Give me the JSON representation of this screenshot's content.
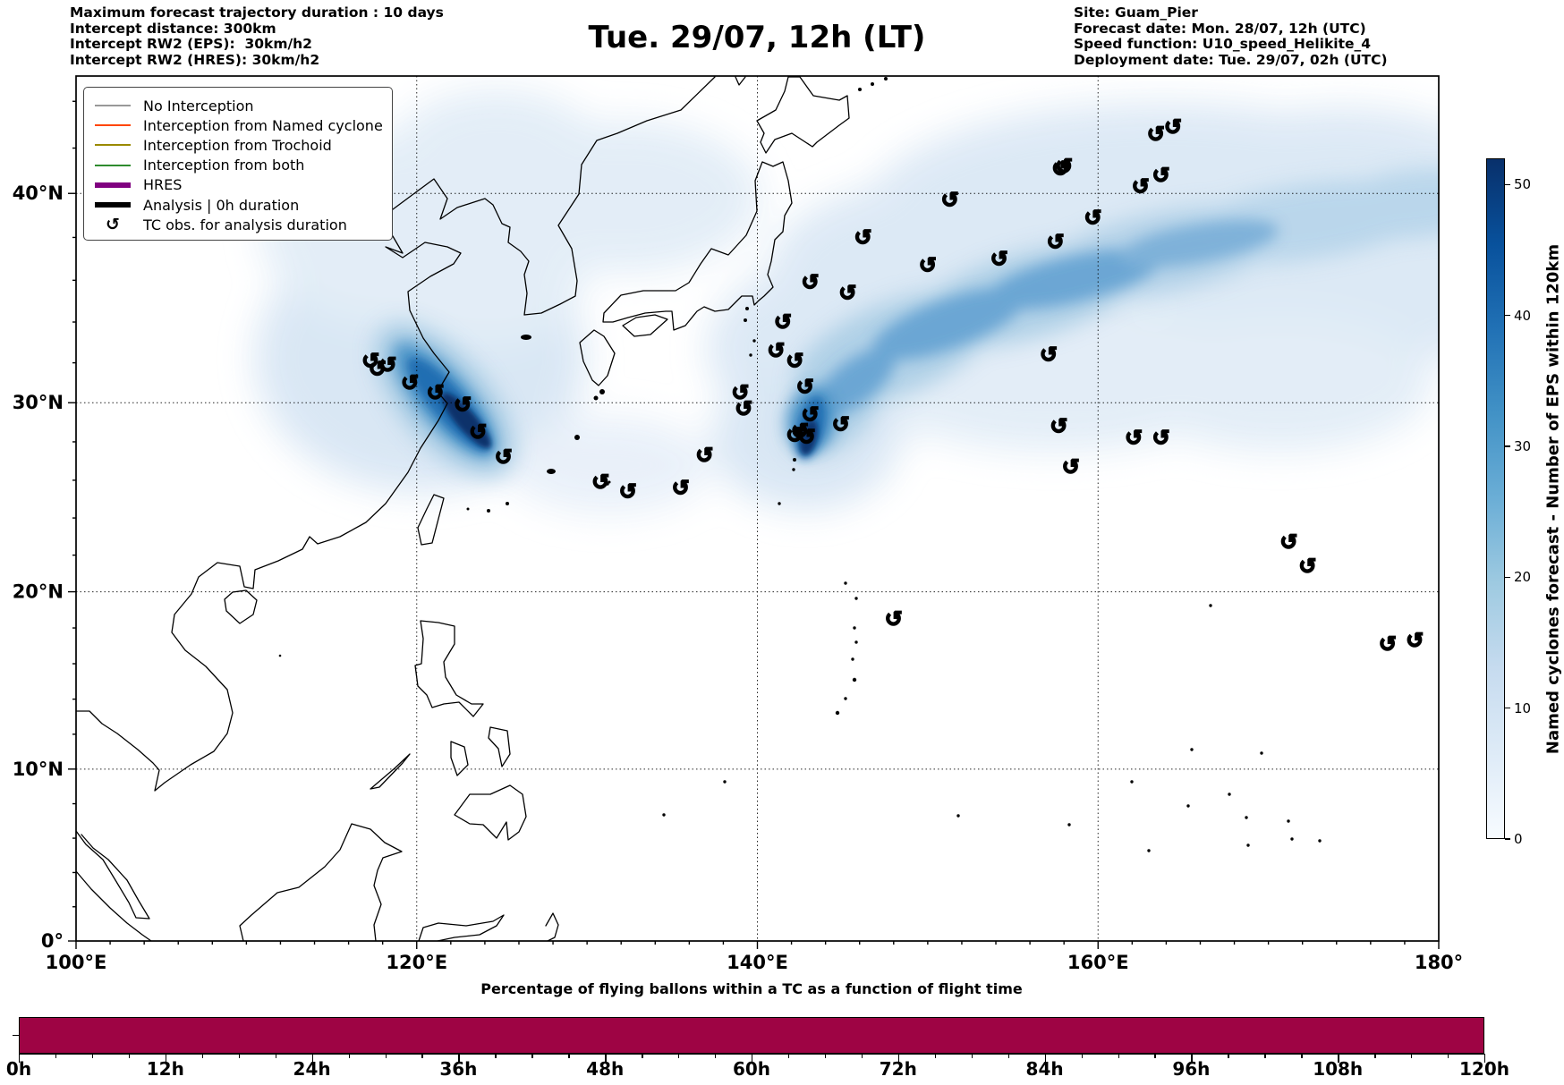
{
  "header": {
    "left_lines": [
      "Maximum forecast trajectory duration : 10 days",
      "Intercept distance: 300km",
      "Intercept RW2 (EPS):  30km/h2",
      "Intercept RW2 (HRES): 30km/h2"
    ],
    "title": "Tue. 29/07, 12h (LT)",
    "right_lines": [
      "Site: Guam_Pier",
      "Forecast date: Mon. 28/07, 12h (UTC)",
      "Speed function: U10_speed_Helikite_4",
      "Deployment date: Tue. 29/07, 02h (UTC)"
    ]
  },
  "legend": {
    "items": [
      {
        "label": "No Interception",
        "type": "line",
        "color": "#999999",
        "lw": 2
      },
      {
        "label": "Interception from Named cyclone",
        "type": "line",
        "color": "#ff4500",
        "lw": 2
      },
      {
        "label": "Interception from Trochoid",
        "type": "line",
        "color": "#9a8a00",
        "lw": 2
      },
      {
        "label": "Interception from both",
        "type": "line",
        "color": "#2e8b2e",
        "lw": 2
      },
      {
        "label": "HRES",
        "type": "line",
        "color": "#800080",
        "lw": 6
      },
      {
        "label": "Analysis | 0h duration",
        "type": "line",
        "color": "#000000",
        "lw": 6
      },
      {
        "label": "TC obs. for analysis duration",
        "type": "marker",
        "symbol": "↺"
      }
    ]
  },
  "colorbar": {
    "label": "Named cyclones forecast - Number of EPS within 120km",
    "ticks": [
      0,
      10,
      20,
      30,
      40,
      50
    ],
    "vmin": 0,
    "vmax": 52,
    "gradient": [
      "#f7fbff",
      "#deebf7",
      "#c6dbef",
      "#9ecae1",
      "#6baed6",
      "#4292c6",
      "#2171b5",
      "#08519c",
      "#08306b"
    ]
  },
  "bottom_chart": {
    "title": "Percentage of flying ballons within a TC as a function of flight time",
    "bar_color": "#9e0444",
    "xtick_labels": [
      "0h",
      "12h",
      "24h",
      "36h",
      "48h",
      "60h",
      "72h",
      "84h",
      "96h",
      "108h",
      "120h"
    ]
  },
  "chart_data": [
    {
      "type": "heatmap",
      "title": "Tue. 29/07, 12h (LT)",
      "xlabel": "",
      "ylabel": "",
      "xlim_lon": [
        100,
        180
      ],
      "ylim_lat": [
        0,
        45
      ],
      "grid": true,
      "legend_position": "upper left",
      "xticks": [
        {
          "v": 100,
          "label": "100°E"
        },
        {
          "v": 120,
          "label": "120°E"
        },
        {
          "v": 140,
          "label": "140°E"
        },
        {
          "v": 160,
          "label": "160°E"
        },
        {
          "v": 180,
          "label": "180°"
        }
      ],
      "yticks": [
        {
          "v": 0,
          "label": "0°"
        },
        {
          "v": 10,
          "label": "10°N"
        },
        {
          "v": 20,
          "label": "20°N"
        },
        {
          "v": 30,
          "label": "30°N"
        },
        {
          "v": 40,
          "label": "40°N"
        }
      ],
      "gridline_lons": [
        120,
        140,
        160
      ],
      "gridline_lats": [
        10,
        20,
        30,
        40
      ],
      "colorbar_label": "Named cyclones forecast - Number of EPS within 120km",
      "density_maxima": [
        {
          "lon": 123.5,
          "lat": 28.6,
          "value": 52,
          "note": "dark plume core East China Sea, elongated SW-NE from (118,33.5) to (125,27.5)"
        },
        {
          "lon": 143.0,
          "lat": 28.3,
          "value": 52,
          "note": "dark plume core south of Japan"
        },
        {
          "lon": 155.0,
          "lat": 37.0,
          "value": 25,
          "note": "broad moderate band fanning NE from Japan toward 180°"
        }
      ],
      "tc_obs_lonlat": [
        [
          157.8,
          41.1
        ],
        [
          151.3,
          39.7
        ],
        [
          159.7,
          38.9
        ],
        [
          146.2,
          38.0
        ],
        [
          157.5,
          37.8
        ],
        [
          154.2,
          37.0
        ],
        [
          150.0,
          36.7
        ],
        [
          143.1,
          35.9
        ],
        [
          145.3,
          35.4
        ],
        [
          141.5,
          34.0
        ],
        [
          141.1,
          32.6
        ],
        [
          142.2,
          32.1
        ],
        [
          142.8,
          30.8
        ],
        [
          139.2,
          29.7
        ],
        [
          143.1,
          29.4
        ],
        [
          157.1,
          32.4
        ],
        [
          157.7,
          28.8
        ],
        [
          163.4,
          42.6
        ],
        [
          164.4,
          42.9
        ],
        [
          158.0,
          41.2
        ],
        [
          162.5,
          40.3
        ],
        [
          163.7,
          40.8
        ],
        [
          139.0,
          30.5
        ],
        [
          144.9,
          28.9
        ],
        [
          142.5,
          28.55
        ],
        [
          142.9,
          28.25
        ],
        [
          142.2,
          28.35
        ],
        [
          123.6,
          28.5
        ],
        [
          125.1,
          27.2
        ],
        [
          130.8,
          25.9
        ],
        [
          132.4,
          25.4
        ],
        [
          135.5,
          25.6
        ],
        [
          136.9,
          27.3
        ],
        [
          117.3,
          32.1
        ],
        [
          117.7,
          31.7
        ],
        [
          118.3,
          31.9
        ],
        [
          119.6,
          31.0
        ],
        [
          121.1,
          30.5
        ],
        [
          122.7,
          29.9
        ],
        [
          162.1,
          28.2
        ],
        [
          163.7,
          28.2
        ],
        [
          158.4,
          26.7
        ],
        [
          171.2,
          22.7
        ],
        [
          172.3,
          21.4
        ],
        [
          148.0,
          18.5
        ],
        [
          177.0,
          17.1
        ],
        [
          178.6,
          17.3
        ]
      ]
    },
    {
      "type": "bar",
      "title": "Percentage of flying ballons within a TC as a function of flight time",
      "x_hours_range": [
        0,
        120
      ],
      "xtick_labels": [
        "0h",
        "12h",
        "24h",
        "36h",
        "48h",
        "60h",
        "72h",
        "84h",
        "96h",
        "108h",
        "120h"
      ],
      "values_percent": [
        100,
        100,
        100,
        100,
        100,
        100,
        100,
        100,
        100,
        100,
        100
      ],
      "note": "single full-height constant bar spanning 0h-120h",
      "bar_color": "#9e0444"
    }
  ]
}
